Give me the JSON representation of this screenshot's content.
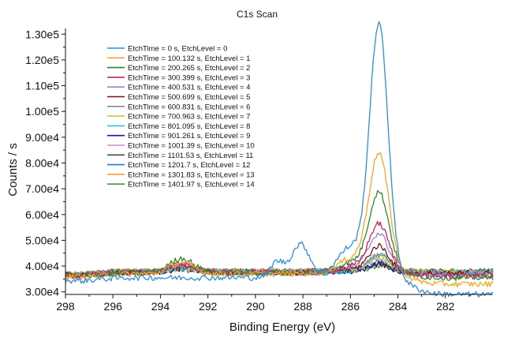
{
  "chart_data": {
    "type": "line",
    "title": "C1s Scan",
    "xlabel": "Binding Energy (eV)",
    "ylabel": "Counts / s",
    "xlim": [
      298,
      280
    ],
    "x_reversed": true,
    "ylim": [
      29000,
      131000
    ],
    "x_ticks": [
      298,
      296,
      294,
      292,
      290,
      288,
      286,
      284,
      282
    ],
    "x_tick_labels": [
      "298",
      "296",
      "294",
      "292",
      "290",
      "288",
      "286",
      "284",
      "282"
    ],
    "y_ticks": [
      30000,
      40000,
      50000,
      60000,
      70000,
      80000,
      90000,
      100000,
      110000,
      120000,
      130000
    ],
    "y_tick_labels": [
      "3.00e4",
      "4.00e4",
      "5.00e4",
      "6.00e4",
      "7.00e4",
      "8.00e4",
      "9.00e4",
      "1.00e5",
      "1.10e5",
      "1.20e5",
      "1.30e5"
    ],
    "grid": false,
    "legend_position": "top-left",
    "peak_center_ev": 284.8,
    "series": [
      {
        "name": "EtchTime = 0 s, EtchLevel = 0",
        "color": "#2f8fd8",
        "peak_height": 130000,
        "peak_width": 0.55,
        "bg_high": 35500,
        "bg_low": 29000,
        "adventitious_288": 50000,
        "shake_293": 0
      },
      {
        "name": "EtchTime = 100.132 s, EtchLevel = 1",
        "color": "#f5a623",
        "peak_height": 81500,
        "peak_width": 0.6,
        "bg_high": 37000,
        "bg_low": 33000,
        "adventitious_288": 0,
        "shake_293": 41500
      },
      {
        "name": "EtchTime = 200.265 s, EtchLevel = 2",
        "color": "#2a8a2a",
        "peak_height": 67500,
        "peak_width": 0.6,
        "bg_high": 37500,
        "bg_low": 35500,
        "adventitious_288": 0,
        "shake_293": 43000
      },
      {
        "name": "EtchTime = 300.399 s, EtchLevel = 3",
        "color": "#c8245a",
        "peak_height": 55500,
        "peak_width": 0.6,
        "bg_high": 37500,
        "bg_low": 36000,
        "adventitious_288": 0,
        "shake_293": 41000
      },
      {
        "name": "EtchTime = 400.531 s, EtchLevel = 4",
        "color": "#9b7fd4",
        "peak_height": 52000,
        "peak_width": 0.6,
        "bg_high": 37500,
        "bg_low": 36500,
        "adventitious_288": 0,
        "shake_293": 40500
      },
      {
        "name": "EtchTime = 500.699 s, EtchLevel = 5",
        "color": "#7a1010",
        "peak_height": 47500,
        "peak_width": 0.6,
        "bg_high": 37500,
        "bg_low": 37000,
        "adventitious_288": 0,
        "shake_293": 40000
      },
      {
        "name": "EtchTime = 600.831 s, EtchLevel = 6",
        "color": "#8a8a8a",
        "peak_height": 44000,
        "peak_width": 0.6,
        "bg_high": 38000,
        "bg_low": 37500,
        "adventitious_288": 0,
        "shake_293": 40000
      },
      {
        "name": "EtchTime = 700.963 s, EtchLevel = 7",
        "color": "#b8d040",
        "peak_height": 43000,
        "peak_width": 0.6,
        "bg_high": 38000,
        "bg_low": 37500,
        "adventitious_288": 0,
        "shake_293": 39500
      },
      {
        "name": "EtchTime = 801.095 s, EtchLevel = 8",
        "color": "#2cc4c4",
        "peak_height": 44500,
        "peak_width": 0.6,
        "bg_high": 37500,
        "bg_low": 37500,
        "adventitious_288": 0,
        "shake_293": 39500
      },
      {
        "name": "EtchTime = 901.261 s, EtchLevel = 9",
        "color": "#1a1a8a",
        "peak_height": 41000,
        "peak_width": 0.6,
        "bg_high": 37500,
        "bg_low": 37500,
        "adventitious_288": 0,
        "shake_293": 39000
      },
      {
        "name": "EtchTime = 1001.39 s, EtchLevel = 10",
        "color": "#e080e0",
        "peak_height": 42500,
        "peak_width": 0.6,
        "bg_high": 38000,
        "bg_low": 37500,
        "adventitious_288": 0,
        "shake_293": 39500
      },
      {
        "name": "EtchTime = 1101.53 s, EtchLevel = 11",
        "color": "#4a4a4a",
        "peak_height": 40500,
        "peak_width": 0.6,
        "bg_high": 38000,
        "bg_low": 38000,
        "adventitious_288": 0,
        "shake_293": 39000
      },
      {
        "name": "EtchTime = 1201.7 s, EtchLevel = 12",
        "color": "#1f7fcf",
        "peak_height": 41500,
        "peak_width": 0.6,
        "bg_high": 37500,
        "bg_low": 37500,
        "adventitious_288": 0,
        "shake_293": 39000
      },
      {
        "name": "EtchTime = 1301.83 s, EtchLevel = 13",
        "color": "#f0a030",
        "peak_height": 40500,
        "peak_width": 0.6,
        "bg_high": 38000,
        "bg_low": 37500,
        "adventitious_288": 0,
        "shake_293": 39000
      },
      {
        "name": "EtchTime = 1401.97 s, EtchLevel = 14",
        "color": "#3a9a3a",
        "peak_height": 40000,
        "peak_width": 0.6,
        "bg_high": 38000,
        "bg_low": 38000,
        "adventitious_288": 0,
        "shake_293": 38500
      }
    ]
  }
}
